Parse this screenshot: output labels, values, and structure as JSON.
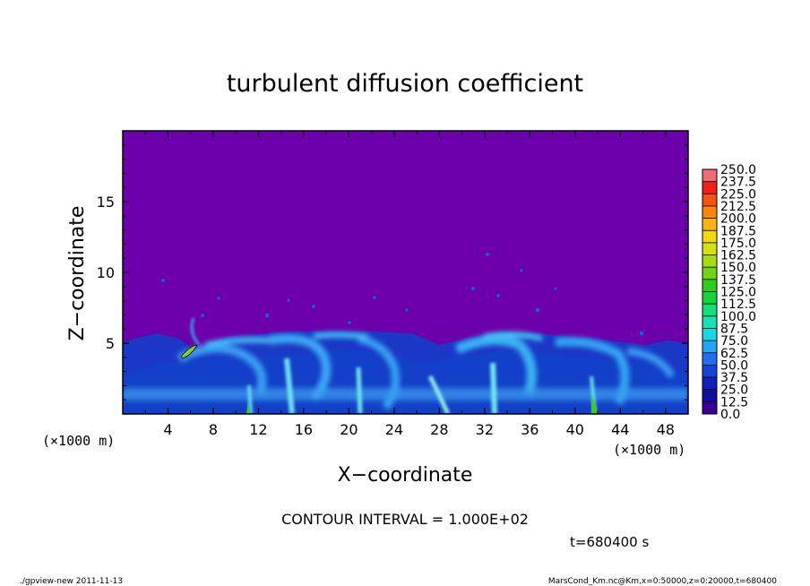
{
  "chart_data": {
    "type": "heatmap",
    "title": "turbulent diffusion coefficient",
    "xlabel": "X−coordinate",
    "ylabel": "Z−coordinate",
    "x_unit_left": "(×1000 m)",
    "x_unit_right": "(×1000 m)",
    "x_ticks": [
      "4",
      "8",
      "12",
      "16",
      "20",
      "24",
      "28",
      "32",
      "36",
      "40",
      "44",
      "48"
    ],
    "y_ticks": [
      "5",
      "10",
      "15"
    ],
    "xlim": [
      0,
      50
    ],
    "ylim": [
      0,
      20
    ],
    "colorbar_levels": [
      "0.0",
      "12.5",
      "25.0",
      "37.5",
      "50.0",
      "62.5",
      "75.0",
      "87.5",
      "100.0",
      "112.5",
      "125.0",
      "137.5",
      "150.0",
      "162.5",
      "175.0",
      "187.5",
      "200.0",
      "212.5",
      "225.0",
      "237.5",
      "250.0"
    ],
    "colorbar_colors": [
      "#3a0096",
      "#10109c",
      "#0e22b8",
      "#1244d6",
      "#1e6ef0",
      "#1ea8f6",
      "#18d8e6",
      "#18e0b0",
      "#14e07a",
      "#18d43a",
      "#2ecc1c",
      "#70d418",
      "#a6da16",
      "#d6e014",
      "#f0d814",
      "#f8b410",
      "#f8860e",
      "#f4540e",
      "#ee2216",
      "#f26a72"
    ],
    "background_color": "#6c00aa",
    "contour_interval_text": "CONTOUR INTERVAL = 1.000E+02",
    "time_text": "t=680400 s"
  },
  "footer": {
    "left": "./gpview-new   2011-11-13",
    "right": "MarsCond_Km.nc@Km,x=0:50000,z=0:20000,t=680400"
  }
}
